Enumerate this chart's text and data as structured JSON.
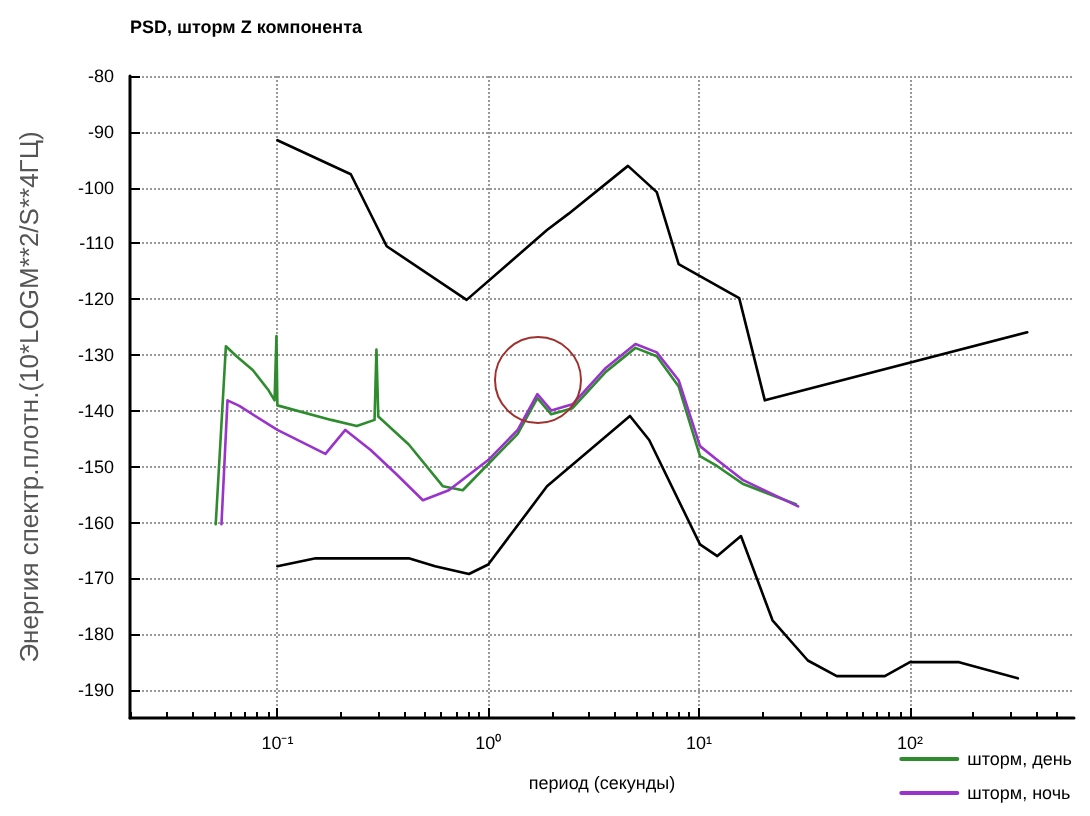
{
  "chart_data": {
    "type": "line",
    "title": "PSD, шторм Z компонента",
    "xlabel": "период (секунды)",
    "ylabel": "Энергия спектр.плотн.(10*LOGM**2/S**4ГЦ)",
    "log": "x",
    "xlim": [
      0.02,
      600
    ],
    "xticks": [
      {
        "value": 0.1,
        "label": "10⁻¹"
      },
      {
        "value": 1,
        "label": "10⁰"
      },
      {
        "value": 10,
        "label": "10¹"
      },
      {
        "value": 100,
        "label": "10²"
      }
    ],
    "ylim": [
      -195,
      -80
    ],
    "yticks": [
      -80,
      -90,
      -100,
      -110,
      -120,
      -130,
      -140,
      -150,
      -160,
      -170,
      -180,
      -190
    ],
    "grid": true,
    "legend": "bottom right",
    "marker": "none",
    "line_style": "solid",
    "series": [
      {
        "color": "#000000",
        "x": [
          0.1,
          0.223,
          0.33,
          0.79,
          1.9,
          2.4,
          4.6,
          6.3,
          8.0,
          15.5,
          20.5,
          360
        ],
        "values": [
          -91.5,
          -97.6,
          -110.5,
          -120.1,
          -107.6,
          -104.7,
          -96.1,
          -100.8,
          -113.7,
          -119.8,
          -138.1,
          -125.9
        ]
      },
      {
        "color": "#000000",
        "x": [
          0.1,
          0.152,
          0.42,
          0.56,
          0.81,
          1.0,
          1.9,
          4.7,
          5.8,
          10.1,
          12.2,
          15.8,
          22.3,
          32.8,
          45,
          76,
          100,
          171,
          325
        ],
        "values": [
          -167.8,
          -166.4,
          -166.4,
          -167.8,
          -169.2,
          -167.5,
          -153.5,
          -140.9,
          -145.2,
          -163.9,
          -166.0,
          -162.4,
          -177.5,
          -184.7,
          -187.5,
          -187.5,
          -185.0,
          -185.0,
          -187.9
        ]
      },
      {
        "name": "шторм, день",
        "color": "#2e8b2e",
        "x": [
          0.051,
          0.057,
          0.064,
          0.0766,
          0.0908,
          0.097,
          0.099,
          0.1,
          0.18,
          0.238,
          0.289,
          0.295,
          0.301,
          0.42,
          0.61,
          0.757,
          1.0,
          1.38,
          1.71,
          1.99,
          2.51,
          3.61,
          4.99,
          6.3,
          8.0,
          10.1,
          12.2,
          16.2,
          28.8
        ],
        "values": [
          -160.3,
          -128.4,
          -130.2,
          -132.7,
          -136.3,
          -138.1,
          -126.6,
          -139.0,
          -141.6,
          -142.7,
          -141.6,
          -129.0,
          -141.0,
          -146.0,
          -153.5,
          -154.2,
          -149.5,
          -144.1,
          -137.7,
          -140.6,
          -139.5,
          -133.0,
          -128.7,
          -130.2,
          -135.6,
          -148.1,
          -149.9,
          -153.1,
          -156.7
        ]
      },
      {
        "name": "шторм, ночь",
        "color": "#9933cc",
        "x": [
          0.0543,
          0.058,
          0.066,
          0.1,
          0.169,
          0.21,
          0.277,
          0.366,
          0.49,
          0.65,
          1.0,
          1.38,
          1.71,
          1.99,
          2.51,
          3.61,
          4.99,
          6.3,
          8.0,
          10.1,
          12.2,
          16.2,
          29.5
        ],
        "values": [
          -160.3,
          -138.1,
          -139.1,
          -143.4,
          -147.7,
          -143.4,
          -147.0,
          -151.3,
          -156.0,
          -154.2,
          -148.8,
          -143.4,
          -137.0,
          -139.9,
          -138.8,
          -132.3,
          -128.0,
          -129.5,
          -134.5,
          -146.3,
          -148.8,
          -152.4,
          -157.1
        ]
      }
    ]
  }
}
